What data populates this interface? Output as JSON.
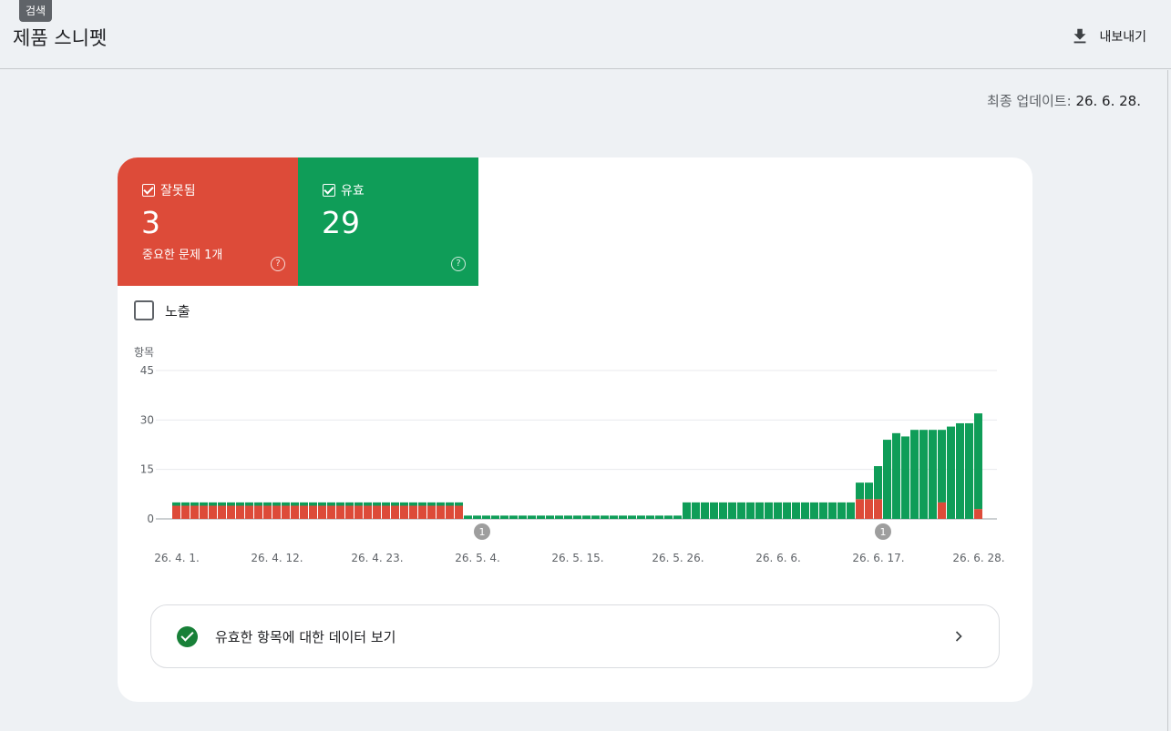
{
  "header": {
    "tooltip": "검색",
    "title": "제품 스니펫",
    "export_label": "내보내기"
  },
  "updated": {
    "label": "최종 업데이트:",
    "date": "26. 6. 28."
  },
  "tiles": {
    "error": {
      "label": "잘못됨",
      "value": "3",
      "sub": "중요한 문제 1개",
      "color": "#dd4b39"
    },
    "valid": {
      "label": "유효",
      "value": "29",
      "color": "#0f9d58"
    }
  },
  "impressions": {
    "label": "노출",
    "checked": false
  },
  "footer": {
    "link_label": "유효한 항목에 대한 데이터 보기"
  },
  "chart_data": {
    "type": "bar",
    "stacked": true,
    "ylabel": "항목",
    "ylim": [
      0,
      45
    ],
    "yticks": [
      0,
      15,
      30,
      45
    ],
    "grid": true,
    "x_tick_labels": [
      "26. 4. 1.",
      "26. 4. 12.",
      "26. 4. 23.",
      "26. 5. 4.",
      "26. 5. 15.",
      "26. 5. 26.",
      "26. 6. 6.",
      "26. 6. 17.",
      "26. 6. 28."
    ],
    "x_start": "26. 4. 1.",
    "x_end": "26. 6. 28.",
    "annotations": [
      {
        "date": "26. 5. 4.",
        "label": "1"
      },
      {
        "date": "26. 6. 17.",
        "label": "1"
      }
    ],
    "series": [
      {
        "name": "잘못됨",
        "color": "#dd4b39",
        "values": [
          4,
          4,
          4,
          4,
          4,
          4,
          4,
          4,
          4,
          4,
          4,
          4,
          4,
          4,
          4,
          4,
          4,
          4,
          4,
          4,
          4,
          4,
          4,
          4,
          4,
          4,
          4,
          4,
          4,
          4,
          4,
          4,
          0,
          0,
          0,
          0,
          0,
          0,
          0,
          0,
          0,
          0,
          0,
          0,
          0,
          0,
          0,
          0,
          0,
          0,
          0,
          0,
          0,
          0,
          0,
          0,
          0,
          0,
          0,
          0,
          0,
          0,
          0,
          0,
          0,
          0,
          0,
          0,
          0,
          0,
          0,
          0,
          0,
          0,
          0,
          6,
          6,
          6,
          0,
          0,
          0,
          0,
          0,
          0,
          5,
          0,
          0,
          0,
          3
        ]
      },
      {
        "name": "유효",
        "color": "#0f9d58",
        "values": [
          1,
          1,
          1,
          1,
          1,
          1,
          1,
          1,
          1,
          1,
          1,
          1,
          1,
          1,
          1,
          1,
          1,
          1,
          1,
          1,
          1,
          1,
          1,
          1,
          1,
          1,
          1,
          1,
          1,
          1,
          1,
          1,
          1,
          1,
          1,
          1,
          1,
          1,
          1,
          1,
          1,
          1,
          1,
          1,
          1,
          1,
          1,
          1,
          1,
          1,
          1,
          1,
          1,
          1,
          1,
          1,
          5,
          5,
          5,
          5,
          5,
          5,
          5,
          5,
          5,
          5,
          5,
          5,
          5,
          5,
          5,
          5,
          5,
          5,
          5,
          5,
          5,
          10,
          24,
          26,
          25,
          27,
          27,
          27,
          22,
          28,
          29,
          29,
          29
        ]
      }
    ]
  }
}
